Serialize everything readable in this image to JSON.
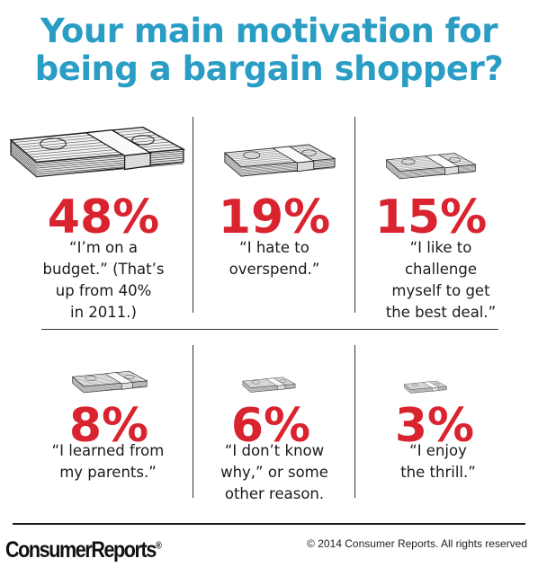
{
  "title_line1": "Your main motivation for",
  "title_line2": "being a bargain shopper?",
  "chart_data": {
    "type": "table",
    "title": "Your main motivation for being a bargain shopper?",
    "categories": [
      "I'm on a budget",
      "I hate to overspend",
      "I like to challenge myself to get the best deal",
      "I learned from my parents",
      "I don't know why, or some other reason",
      "I enjoy the thrill"
    ],
    "values": [
      48,
      19,
      15,
      8,
      6,
      3
    ],
    "items": [
      {
        "pct": "48%",
        "quote": "“I’m on a\nbudget.” (That’s\nup from 40%\nin 2011.)"
      },
      {
        "pct": "19%",
        "quote": "“I hate to\noverspend.”"
      },
      {
        "pct": "15%",
        "quote": "“I like to\nchallenge\nmyself to get\nthe best deal.”"
      },
      {
        "pct": "8%",
        "quote": "“I learned from\nmy parents.”"
      },
      {
        "pct": "6%",
        "quote": "“I don’t know\nwhy,” or some\nother reason."
      },
      {
        "pct": "3%",
        "quote": "“I enjoy\nthe thrill.”"
      }
    ]
  },
  "colors": {
    "title": "#2a9dc4",
    "percent": "#d9232e",
    "text": "#1b1b1b"
  },
  "icons": {
    "money": "money-stack-icon"
  },
  "footer": {
    "logo": "ConsumerReports",
    "logo_mark": "®",
    "copyright": "© 2014 Consumer Reports. All rights reserved"
  }
}
